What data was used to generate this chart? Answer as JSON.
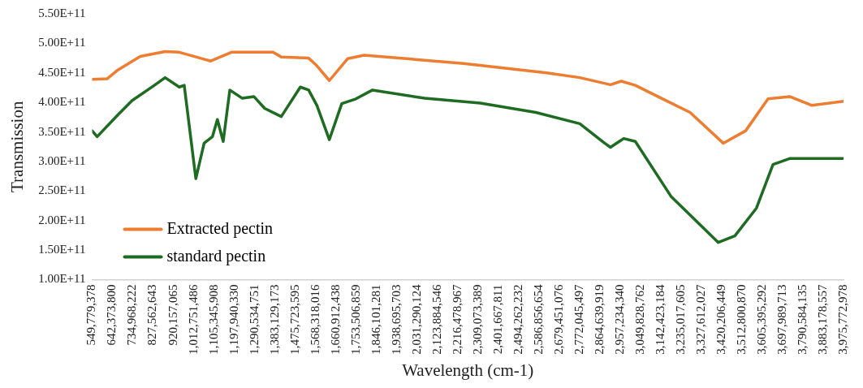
{
  "chart_data": {
    "type": "line",
    "xlabel": "Wavelength (cm-1)",
    "ylabel": "Transmission",
    "grid": false,
    "legend": "bottom left",
    "marker": "none",
    "line_style": "solid",
    "xlim": [
      549779378,
      3975772978
    ],
    "xticks": [
      {
        "value": 549779378,
        "label": "549,779,378"
      },
      {
        "value": 642373800,
        "label": "642,373,800"
      },
      {
        "value": 734968222,
        "label": "734,968,222"
      },
      {
        "value": 827562643,
        "label": "827,562,643"
      },
      {
        "value": 920157065,
        "label": "920,157,065"
      },
      {
        "value": 1012751486,
        "label": "1,012,751,486"
      },
      {
        "value": 1105345908,
        "label": "1,105,345,908"
      },
      {
        "value": 1197940330,
        "label": "1,197,940,330"
      },
      {
        "value": 1290534751,
        "label": "1,290,534,751"
      },
      {
        "value": 1383129173,
        "label": "1,383,129,173"
      },
      {
        "value": 1475723595,
        "label": "1,475,723,595"
      },
      {
        "value": 1568318016,
        "label": "1,568,318,016"
      },
      {
        "value": 1660912438,
        "label": "1,660,912,438"
      },
      {
        "value": 1753506859,
        "label": "1,753,506,859"
      },
      {
        "value": 1846101281,
        "label": "1,846,101,281"
      },
      {
        "value": 1938695703,
        "label": "1,938,695,703"
      },
      {
        "value": 2031290124,
        "label": "2,031,290,124"
      },
      {
        "value": 2123884546,
        "label": "2,123,884,546"
      },
      {
        "value": 2216478967,
        "label": "2,216,478,967"
      },
      {
        "value": 2309073389,
        "label": "2,309,073,389"
      },
      {
        "value": 2401667811,
        "label": "2,401,667,811"
      },
      {
        "value": 2494262232,
        "label": "2,494,262,232"
      },
      {
        "value": 2586856654,
        "label": "2,586,856,654"
      },
      {
        "value": 2679451076,
        "label": "2,679,451,076"
      },
      {
        "value": 2772045497,
        "label": "2,772,045,497"
      },
      {
        "value": 2864639919,
        "label": "2,864,639,919"
      },
      {
        "value": 2957234340,
        "label": "2,957,234,340"
      },
      {
        "value": 3049828762,
        "label": "3,049,828,762"
      },
      {
        "value": 3142423184,
        "label": "3,142,423,184"
      },
      {
        "value": 3235017605,
        "label": "3,235,017,605"
      },
      {
        "value": 3327612027,
        "label": "3,327,612,027"
      },
      {
        "value": 3420206449,
        "label": "3,420,206,449"
      },
      {
        "value": 3512800870,
        "label": "3,512,800,870"
      },
      {
        "value": 3605395292,
        "label": "3,605,395,292"
      },
      {
        "value": 3697989713,
        "label": "3,697,989,713"
      },
      {
        "value": 3790584135,
        "label": "3,790,584,135"
      },
      {
        "value": 3883178557,
        "label": "3,883,178,557"
      },
      {
        "value": 3975772978,
        "label": "3,975,772,978"
      }
    ],
    "ylim": [
      100000000000,
      550000000000
    ],
    "yticks": [
      {
        "value": 100000000000,
        "label": "1.00E+11"
      },
      {
        "value": 150000000000,
        "label": "1.50E+11"
      },
      {
        "value": 200000000000,
        "label": "2.00E+11"
      },
      {
        "value": 250000000000,
        "label": "2.50E+11"
      },
      {
        "value": 300000000000,
        "label": "3.00E+11"
      },
      {
        "value": 350000000000,
        "label": "3.50E+11"
      },
      {
        "value": 400000000000,
        "label": "4.00E+11"
      },
      {
        "value": 450000000000,
        "label": "4.50E+11"
      },
      {
        "value": 500000000000,
        "label": "5.00E+11"
      },
      {
        "value": 550000000000,
        "label": "5.50E+11"
      }
    ],
    "series": [
      {
        "name": "Extracted pectin",
        "color": "#ed7d31",
        "x": [
          549779378,
          617800000,
          667000000,
          769100000,
          882500000,
          946800000,
          1090500000,
          1185100000,
          1374100000,
          1412000000,
          1536800000,
          1574600000,
          1631300000,
          1714500000,
          1790100000,
          2243800000,
          2621900000,
          2773200000,
          2913100000,
          2962200000,
          3026500000,
          3151300000,
          3276100000,
          3427400000,
          3529500000,
          3631600000,
          3729900000,
          3832000000,
          3975772978
        ],
        "values": [
          439000000000.0,
          440000000000.0,
          455000000000.0,
          478000000000.0,
          486000000000.0,
          485000000000.0,
          470000000000.0,
          485000000000.0,
          485000000000.0,
          477000000000.0,
          475000000000.0,
          462000000000.0,
          437000000000.0,
          474000000000.0,
          480000000000.0,
          466000000000.0,
          450000000000.0,
          442000000000.0,
          430000000000.0,
          436000000000.0,
          429000000000.0,
          406000000000.0,
          383000000000.0,
          331000000000.0,
          352000000000.0,
          406000000000.0,
          410000000000.0,
          395000000000.0,
          402000000000.0
        ]
      },
      {
        "name": "standard pectin",
        "color": "#1e6b22",
        "x": [
          549779378,
          572500000,
          667000000,
          731300000,
          833400000,
          882500000,
          946800000,
          969500000,
          1022500000,
          1060300000,
          1098100000,
          1120800000,
          1147300000,
          1177500000,
          1234200000,
          1287200000,
          1336300000,
          1412000000,
          1499000000,
          1536800000,
          1574600000,
          1631300000,
          1688000000,
          1752300000,
          1827900000,
          2066100000,
          2319400000,
          2572800000,
          2773200000,
          2886600000,
          2913100000,
          2973600000,
          3026500000,
          3189100000,
          3404700000,
          3480300000,
          3578600000,
          3654300000,
          3729900000,
          3832000000,
          3975772978
        ],
        "values": [
          352000000000.0,
          342000000000.0,
          379000000000.0,
          403000000000.0,
          429000000000.0,
          442000000000.0,
          426000000000.0,
          429000000000.0,
          271000000000.0,
          331000000000.0,
          342000000000.0,
          371000000000.0,
          334000000000.0,
          421000000000.0,
          407000000000.0,
          410000000000.0,
          390000000000.0,
          376000000000.0,
          426000000000.0,
          421000000000.0,
          395000000000.0,
          337000000000.0,
          398000000000.0,
          406000000000.0,
          421000000000.0,
          407000000000.0,
          399000000000.0,
          383000000000.0,
          364000000000.0,
          331000000000.0,
          324000000000.0,
          339000000000.0,
          334000000000.0,
          241000000000.0,
          163000000000.0,
          174000000000.0,
          221000000000.0,
          295000000000.0,
          305000000000.0,
          305000000000.0,
          305000000000.0
        ]
      }
    ]
  }
}
